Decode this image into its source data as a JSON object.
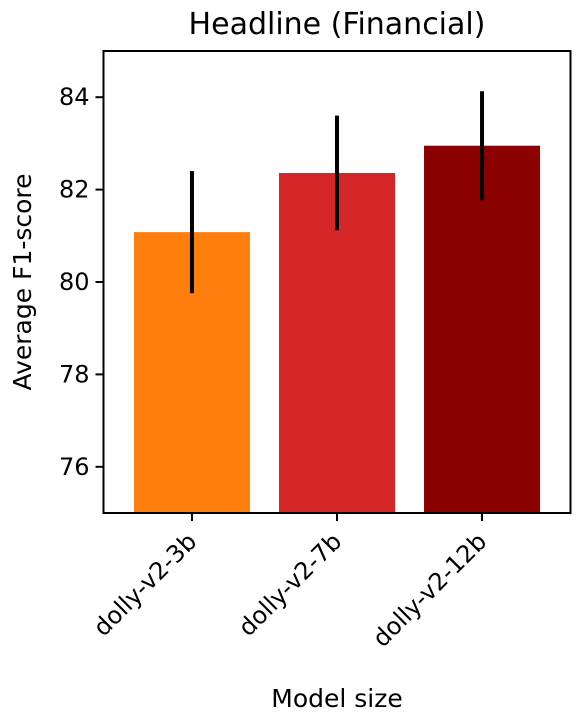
{
  "chart_data": {
    "type": "bar",
    "title": "Headline (Financial)",
    "xlabel": "Model size",
    "ylabel": "Average F1-score",
    "categories": [
      "dolly-v2-3b",
      "dolly-v2-7b",
      "dolly-v2-12b"
    ],
    "values": [
      81.08,
      82.36,
      82.95
    ],
    "error": [
      1.32,
      1.24,
      1.18
    ],
    "colors": [
      "#ff7f0e",
      "#d62728",
      "#8b0000"
    ],
    "ylim": [
      75,
      85
    ],
    "yticks": [
      76,
      78,
      80,
      82,
      84
    ],
    "grid": false,
    "legend": "none"
  }
}
